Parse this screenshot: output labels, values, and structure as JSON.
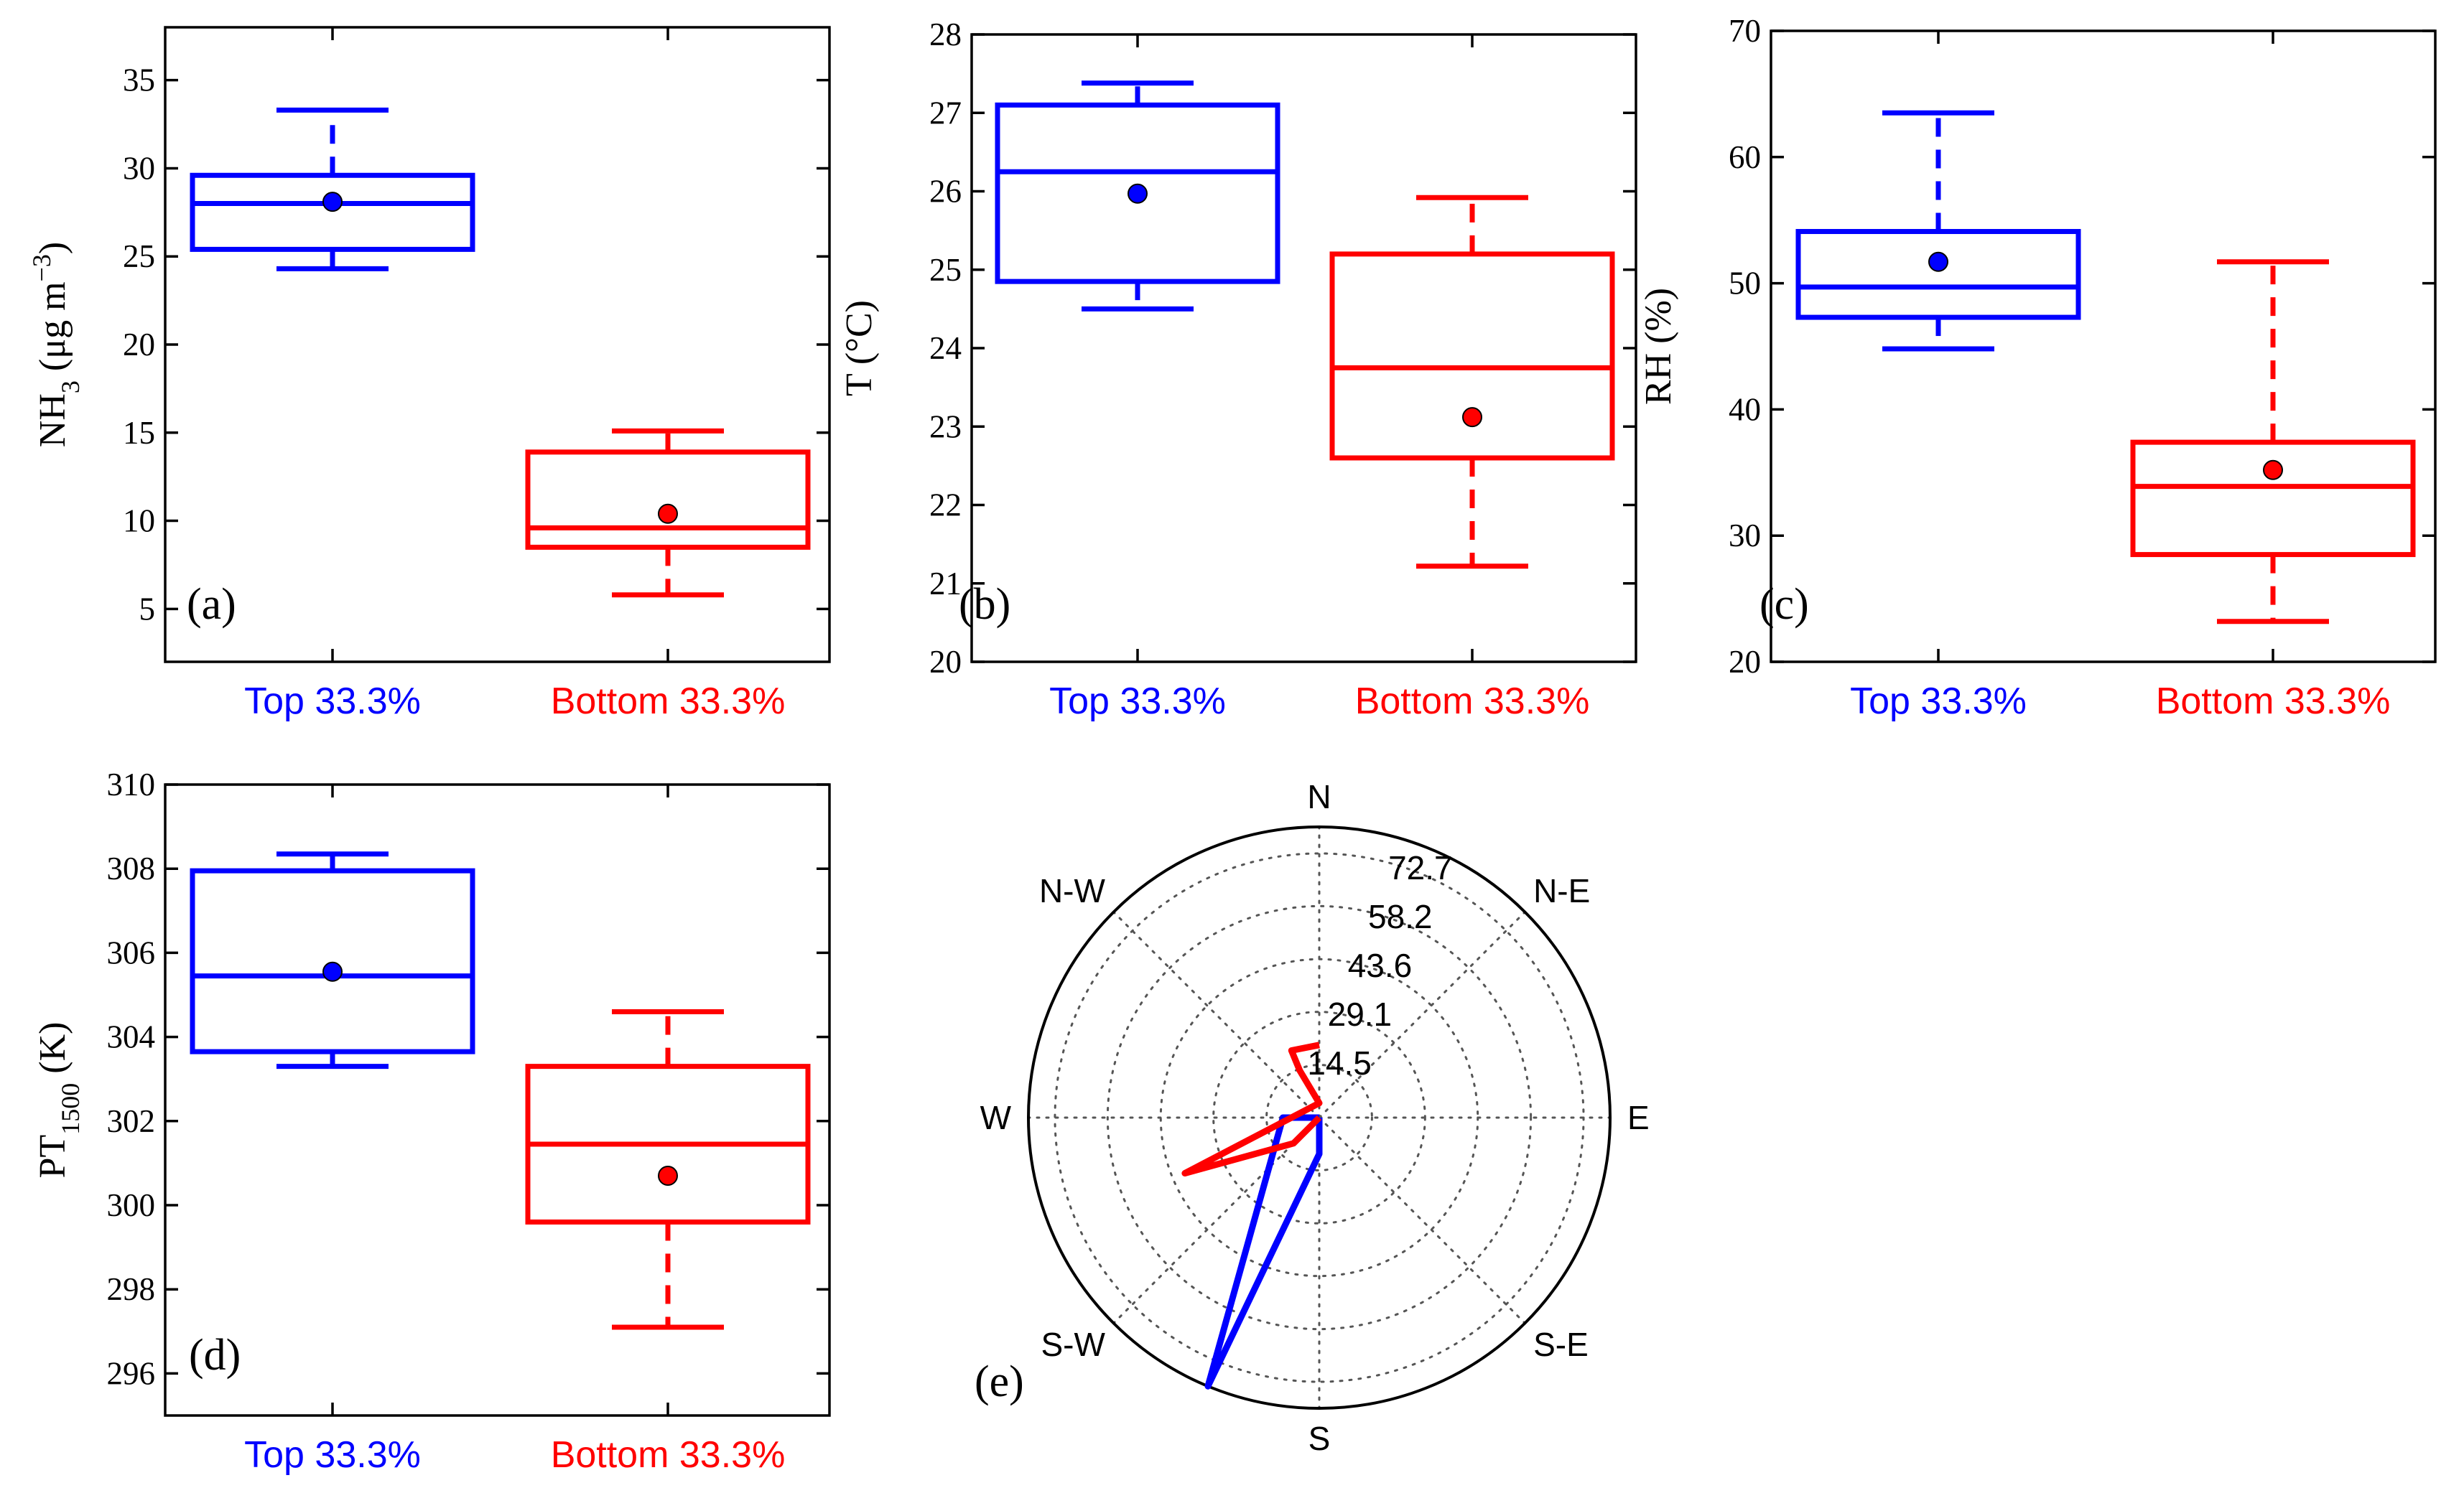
{
  "colors": {
    "top": "#0000ff",
    "bottom": "#ff0000"
  },
  "chart_data": [
    {
      "type": "box",
      "panel": "(a)",
      "ylabel": {
        "base": "NH",
        "sub": "3",
        "rest": " (μg m",
        "sup": "−3",
        "close": ")"
      },
      "ylim": [
        2,
        38
      ],
      "yticks": [
        5,
        10,
        15,
        20,
        25,
        30,
        35
      ],
      "categories": [
        "Top 33.3%",
        "Bottom 33.3%"
      ],
      "boxes": [
        {
          "whislo": 24.3,
          "q1": 25.4,
          "med": 28.0,
          "q3": 29.6,
          "whishi": 33.3,
          "mean": 28.1
        },
        {
          "whislo": 5.8,
          "q1": 8.5,
          "med": 9.6,
          "q3": 13.9,
          "whishi": 15.1,
          "mean": 10.4
        }
      ]
    },
    {
      "type": "box",
      "panel": "(b)",
      "ylabel": {
        "base": "T (",
        "deg": "°C",
        "close": ")"
      },
      "ylim": [
        20,
        28
      ],
      "yticks": [
        20,
        21,
        22,
        23,
        24,
        25,
        26,
        27,
        28
      ],
      "categories": [
        "Top 33.3%",
        "Bottom 33.3%"
      ],
      "boxes": [
        {
          "whislo": 24.5,
          "q1": 24.85,
          "med": 26.25,
          "q3": 27.1,
          "whishi": 27.38,
          "mean": 25.97
        },
        {
          "whislo": 21.22,
          "q1": 22.6,
          "med": 23.75,
          "q3": 25.2,
          "whishi": 25.92,
          "mean": 23.12
        }
      ]
    },
    {
      "type": "box",
      "panel": "(c)",
      "ylabel": {
        "base": "RH (%)"
      },
      "ylim": [
        20,
        70
      ],
      "yticks": [
        20,
        30,
        40,
        50,
        60,
        70
      ],
      "categories": [
        "Top 33.3%",
        "Bottom 33.3%"
      ],
      "boxes": [
        {
          "whislo": 44.8,
          "q1": 47.3,
          "med": 49.7,
          "q3": 54.1,
          "whishi": 63.5,
          "mean": 51.7
        },
        {
          "whislo": 23.2,
          "q1": 28.5,
          "med": 33.9,
          "q3": 37.4,
          "whishi": 51.7,
          "mean": 35.2
        }
      ]
    },
    {
      "type": "box",
      "panel": "(d)",
      "ylabel": {
        "base": "PT",
        "sub": "1500",
        "rest": " (K)"
      },
      "ylim": [
        295,
        310
      ],
      "yticks": [
        296,
        298,
        300,
        302,
        304,
        306,
        308,
        310
      ],
      "categories": [
        "Top 33.3%",
        "Bottom 33.3%"
      ],
      "boxes": [
        {
          "whislo": 303.3,
          "q1": 303.65,
          "med": 305.45,
          "q3": 307.95,
          "whishi": 308.35,
          "mean": 305.55
        },
        {
          "whislo": 297.1,
          "q1": 299.6,
          "med": 301.45,
          "q3": 303.3,
          "whishi": 304.6,
          "mean": 300.7
        }
      ]
    },
    {
      "type": "polar",
      "panel": "(e)",
      "rmax": 80,
      "rticks": [
        14.5,
        29.1,
        43.6,
        58.2,
        72.7
      ],
      "rtick_labels": [
        "14.5",
        "29.1",
        "43.6",
        "58.2",
        "72.7"
      ],
      "directions": [
        "N",
        "N-E",
        "E",
        "S-E",
        "S",
        "S-W",
        "W",
        "N-W"
      ],
      "series": [
        {
          "name": "Top 33.3%",
          "color": "#0000ff",
          "points": [
            [
              0,
              0
            ],
            [
              180,
              10
            ],
            [
              202.5,
              80
            ],
            [
              270,
              10
            ],
            [
              0,
              0
            ]
          ]
        },
        {
          "name": "Bottom 33.3%",
          "color": "#ff0000",
          "points": [
            [
              0,
              20
            ],
            [
              337.5,
              20
            ],
            [
              337.5,
              14
            ],
            [
              0,
              4
            ],
            [
              247.5,
              40
            ],
            [
              225,
              10
            ],
            [
              0,
              0
            ]
          ]
        }
      ]
    }
  ]
}
